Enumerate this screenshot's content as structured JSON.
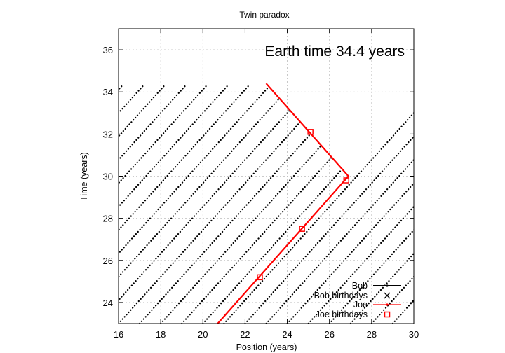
{
  "chart_data": {
    "type": "scatter",
    "title": "Twin paradox",
    "xlabel": "Position (years)",
    "ylabel": "Time (years)",
    "xlim": [
      16,
      30
    ],
    "ylim": [
      23,
      37
    ],
    "xticks": [
      16,
      18,
      20,
      22,
      24,
      26,
      28,
      30
    ],
    "yticks": [
      24,
      26,
      28,
      30,
      32,
      34,
      36
    ],
    "grid": true,
    "legend_position": "bottom-right",
    "annotation": "Earth time 34.4 years",
    "light_speed": 0.9,
    "joe_path": {
      "x": [
        20.7,
        26.9,
        23.0
      ],
      "y": [
        23.0,
        30.0,
        34.4
      ]
    },
    "bob_worldlines": {
      "x_at_t": [
        6,
        7,
        8,
        9,
        10,
        11,
        12,
        13,
        14,
        15,
        16,
        17,
        18,
        19,
        20,
        21,
        22,
        23,
        24,
        25,
        26,
        27,
        28,
        29
      ],
      "t_end": 34.3
    },
    "joe_birthdays": {
      "x": [
        22.7,
        24.7,
        26.8,
        25.1
      ],
      "y": [
        25.2,
        27.5,
        29.8,
        32.1
      ]
    },
    "series": [
      {
        "name": "Bob",
        "color": "#000000",
        "marker": "dot-line"
      },
      {
        "name": "Bob birthdays",
        "color": "#000000",
        "marker": "cross"
      },
      {
        "name": "Joe",
        "color": "#ff0000",
        "marker": "dot-line"
      },
      {
        "name": "Joe birthdays",
        "color": "#ff0000",
        "marker": "square"
      }
    ]
  }
}
